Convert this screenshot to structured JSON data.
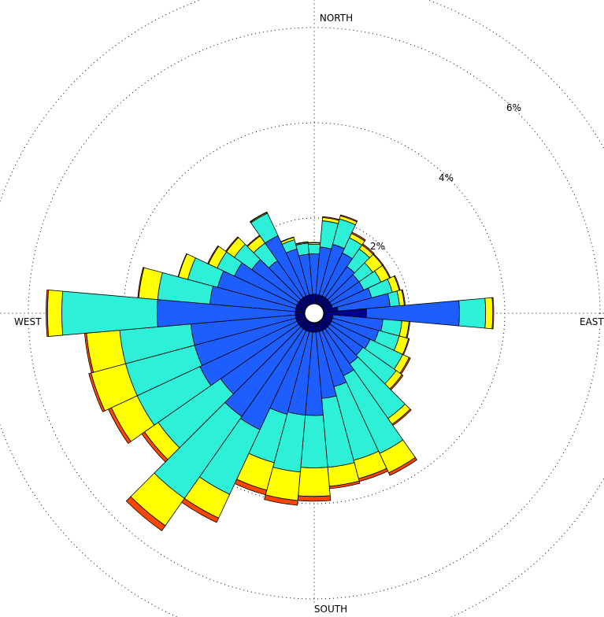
{
  "chart_data": {
    "type": "wind-rose",
    "title": "",
    "direction_labels": {
      "north": "NORTH",
      "east": "EAST",
      "south": "SOUTH",
      "west": "WEST"
    },
    "radial_unit": "%",
    "radial_grid": [
      2,
      4,
      6
    ],
    "radial_tick_labels": [
      "2%",
      "4%",
      "6%"
    ],
    "radial_max": 7,
    "grid": "dotted",
    "sector_count": 36,
    "sector_width_deg": 10,
    "speed_bin_colors": [
      "#00008b",
      "#1e5eff",
      "#2ef0d8",
      "#ffff00",
      "#ff4500"
    ],
    "sectors": [
      {
        "direction_deg": 0,
        "cumulative": [
          0.2,
          1.05,
          1.25,
          1.28,
          1.29
        ]
      },
      {
        "direction_deg": 10,
        "cumulative": [
          0.2,
          1.2,
          1.75,
          1.82,
          1.84
        ]
      },
      {
        "direction_deg": 20,
        "cumulative": [
          0.2,
          1.3,
          1.85,
          1.92,
          1.94
        ]
      },
      {
        "direction_deg": 30,
        "cumulative": [
          0.2,
          1.2,
          1.55,
          1.65,
          1.68
        ]
      },
      {
        "direction_deg": 40,
        "cumulative": [
          0.2,
          1.0,
          1.45,
          1.55,
          1.58
        ]
      },
      {
        "direction_deg": 50,
        "cumulative": [
          0.2,
          0.95,
          1.3,
          1.55,
          1.57
        ]
      },
      {
        "direction_deg": 60,
        "cumulative": [
          0.2,
          0.95,
          1.35,
          1.55,
          1.57
        ]
      },
      {
        "direction_deg": 70,
        "cumulative": [
          0.2,
          1.05,
          1.5,
          1.65,
          1.67
        ]
      },
      {
        "direction_deg": 80,
        "cumulative": [
          0.3,
          1.4,
          1.6,
          1.7,
          1.72
        ]
      },
      {
        "direction_deg": 90,
        "cumulative": [
          0.9,
          2.85,
          3.4,
          3.55,
          3.57
        ]
      },
      {
        "direction_deg": 100,
        "cumulative": [
          0.2,
          1.25,
          1.65,
          1.8,
          1.82
        ]
      },
      {
        "direction_deg": 110,
        "cumulative": [
          0.2,
          1.2,
          1.65,
          1.85,
          1.87
        ]
      },
      {
        "direction_deg": 120,
        "cumulative": [
          0.2,
          1.1,
          1.85,
          2.0,
          2.03
        ]
      },
      {
        "direction_deg": 130,
        "cumulative": [
          0.2,
          1.05,
          1.9,
          2.05,
          2.08
        ]
      },
      {
        "direction_deg": 140,
        "cumulative": [
          0.2,
          1.1,
          2.5,
          2.65,
          2.68
        ]
      },
      {
        "direction_deg": 150,
        "cumulative": [
          0.2,
          1.25,
          3.05,
          3.5,
          3.56
        ]
      },
      {
        "direction_deg": 160,
        "cumulative": [
          0.2,
          1.4,
          3.0,
          3.4,
          3.46
        ]
      },
      {
        "direction_deg": 170,
        "cumulative": [
          0.2,
          1.6,
          3.05,
          3.45,
          3.5
        ]
      },
      {
        "direction_deg": 180,
        "cumulative": [
          0.2,
          1.95,
          3.05,
          3.65,
          3.75
        ]
      },
      {
        "direction_deg": 190,
        "cumulative": [
          0.2,
          1.95,
          3.15,
          3.75,
          3.85
        ]
      },
      {
        "direction_deg": 200,
        "cumulative": [
          0.2,
          2.0,
          3.05,
          3.65,
          3.75
        ]
      },
      {
        "direction_deg": 210,
        "cumulative": [
          0.2,
          2.5,
          4.0,
          4.55,
          4.65
        ]
      },
      {
        "direction_deg": 220,
        "cumulative": [
          0.2,
          2.45,
          4.55,
          5.25,
          5.38
        ]
      },
      {
        "direction_deg": 230,
        "cumulative": [
          0.2,
          2.2,
          3.8,
          4.15,
          4.22
        ]
      },
      {
        "direction_deg": 240,
        "cumulative": [
          0.2,
          2.45,
          3.9,
          4.5,
          4.57
        ]
      },
      {
        "direction_deg": 250,
        "cumulative": [
          0.2,
          2.4,
          3.9,
          4.65,
          4.7
        ]
      },
      {
        "direction_deg": 260,
        "cumulative": [
          0.2,
          2.4,
          3.9,
          4.6,
          4.64
        ]
      },
      {
        "direction_deg": 270,
        "cumulative": [
          0.2,
          3.1,
          5.1,
          5.4,
          5.43
        ]
      },
      {
        "direction_deg": 280,
        "cumulative": [
          0.2,
          2.0,
          3.1,
          3.5,
          3.52
        ]
      },
      {
        "direction_deg": 290,
        "cumulative": [
          0.2,
          1.9,
          2.55,
          2.75,
          2.76
        ]
      },
      {
        "direction_deg": 300,
        "cumulative": [
          0.2,
          1.65,
          2.05,
          2.25,
          2.27
        ]
      },
      {
        "direction_deg": 310,
        "cumulative": [
          0.2,
          1.4,
          1.85,
          2.05,
          2.07
        ]
      },
      {
        "direction_deg": 320,
        "cumulative": [
          0.2,
          1.15,
          1.6,
          1.78,
          1.8
        ]
      },
      {
        "direction_deg": 330,
        "cumulative": [
          0.2,
          1.6,
          2.12,
          2.14,
          2.15
        ]
      },
      {
        "direction_deg": 340,
        "cumulative": [
          0.2,
          1.2,
          1.4,
          1.45,
          1.46
        ]
      },
      {
        "direction_deg": 350,
        "cumulative": [
          0.2,
          1.05,
          1.28,
          1.3,
          1.31
        ]
      }
    ]
  }
}
